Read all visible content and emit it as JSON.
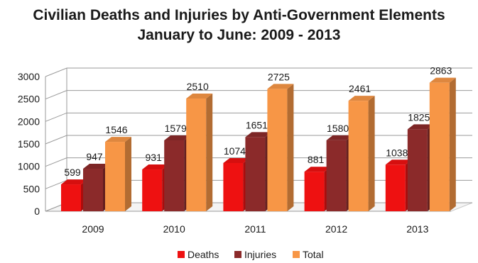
{
  "chart_data": {
    "type": "bar",
    "title_lines": [
      "Civilian Deaths and Injuries by Anti-Government Elements",
      "January to June: 2009 - 2013"
    ],
    "categories": [
      "2009",
      "2010",
      "2011",
      "2012",
      "2013"
    ],
    "series": [
      {
        "name": "Deaths",
        "values": [
          599,
          931,
          1074,
          881,
          1038
        ],
        "color": "#ee1111"
      },
      {
        "name": "Injuries",
        "values": [
          947,
          1579,
          1651,
          1580,
          1825
        ],
        "color": "#8b2a2a"
      },
      {
        "name": "Total",
        "values": [
          1546,
          2510,
          2725,
          2461,
          2863
        ],
        "color": "#f79646"
      }
    ],
    "ylim": [
      0,
      3000
    ],
    "yticks": [
      "0",
      "500",
      "1000",
      "1500",
      "2000",
      "2500",
      "3000"
    ],
    "grid": true,
    "style": "3d clustered columns",
    "legend_position": "bottom"
  }
}
